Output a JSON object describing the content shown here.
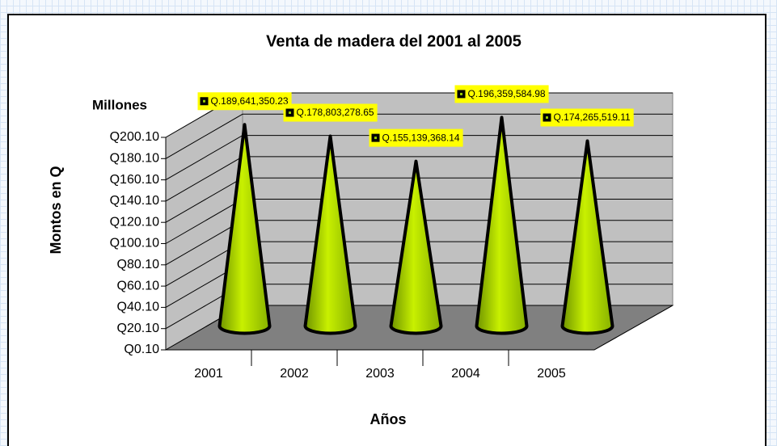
{
  "chart_data": {
    "type": "cone3d",
    "title": "Venta de madera del 2001 al 2005",
    "y_unit_label": "Millones",
    "y_label": "Montos en Q",
    "x_label": "Años",
    "categories": [
      "2001",
      "2002",
      "2003",
      "2004",
      "2005"
    ],
    "values": [
      189.64135023,
      178.80327865,
      155.13936814,
      196.35958498,
      174.26551911
    ],
    "value_labels": [
      "Q.189,641,350.23",
      "Q.178,803,278.65",
      "Q.155,139,368.14",
      "Q.196,359,584.98",
      "Q.174,265,519.11"
    ],
    "color": "#99cc00",
    "ylim": [
      0.1,
      200.1
    ],
    "yticks": [
      {
        "value": 0.1,
        "label": "Q0.10"
      },
      {
        "value": 20.1,
        "label": "Q20.10"
      },
      {
        "value": 40.1,
        "label": "Q40.10"
      },
      {
        "value": 60.1,
        "label": "Q60.10"
      },
      {
        "value": 80.1,
        "label": "Q80.10"
      },
      {
        "value": 100.1,
        "label": "Q100.10"
      },
      {
        "value": 120.1,
        "label": "Q120.10"
      },
      {
        "value": 140.1,
        "label": "Q140.10"
      },
      {
        "value": 160.1,
        "label": "Q160.10"
      },
      {
        "value": 180.1,
        "label": "Q180.10"
      },
      {
        "value": 200.1,
        "label": "Q200.10"
      }
    ],
    "grid": true
  }
}
